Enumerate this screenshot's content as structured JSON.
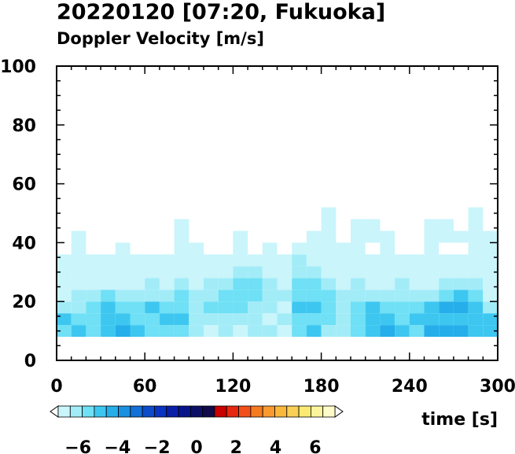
{
  "header": {
    "title": "20220120 [07:20, Fukuoka]",
    "subtitle": "Doppler Velocity [m/s]"
  },
  "chart_data": {
    "type": "heatmap",
    "title": "20220120 [07:20, Fukuoka]",
    "subtitle": "Doppler Velocity [m/s]",
    "xlabel": "time [s]",
    "ylabel": "",
    "xlim": [
      0,
      300
    ],
    "ylim": [
      0,
      100
    ],
    "x_ticks": [
      0,
      60,
      120,
      180,
      240,
      300
    ],
    "y_ticks": [
      0,
      20,
      40,
      60,
      80,
      100
    ],
    "grid": false,
    "data_floor_height": 8,
    "time_bins_s": [
      0,
      10,
      20,
      30,
      40,
      50,
      60,
      70,
      80,
      90,
      100,
      110,
      120,
      130,
      140,
      150,
      160,
      170,
      180,
      190,
      200,
      210,
      220,
      230,
      240,
      250,
      260,
      270,
      280,
      290
    ],
    "height_bins": [
      8,
      12,
      16,
      20,
      24,
      28,
      32,
      36,
      40,
      44,
      48
    ],
    "velocity_grid": [
      [
        -5.5,
        -5.0,
        -5.5,
        -5.0,
        -4.5,
        -5.0,
        -5.5,
        -5.5,
        -5.5,
        -6.0,
        -6.5,
        -6.0,
        -6.5,
        -6.0,
        -6.0,
        -6.5,
        -5.5,
        -5.0,
        -6.0,
        -6.0,
        -5.5,
        -5.0,
        -4.5,
        -5.0,
        -5.5,
        -4.5,
        -4.5,
        -4.5,
        -5.0,
        -5.0
      ],
      [
        -5.0,
        -5.5,
        -5.5,
        -5.0,
        -5.0,
        -5.5,
        -5.5,
        -5.0,
        -5.0,
        -6.0,
        -6.0,
        -6.0,
        -6.0,
        -6.0,
        -6.5,
        -6.0,
        -5.5,
        -5.5,
        -5.5,
        -6.0,
        -5.5,
        -5.0,
        -5.0,
        -5.5,
        -5.0,
        -5.0,
        -5.0,
        -5.0,
        -5.0,
        -5.0
      ],
      [
        -6.0,
        -6.0,
        -5.5,
        -5.0,
        -5.5,
        -5.5,
        -5.0,
        -5.5,
        -5.5,
        -6.0,
        -5.5,
        -5.5,
        -5.5,
        -6.0,
        -6.0,
        -6.5,
        -5.0,
        -5.0,
        -5.5,
        -6.0,
        -5.5,
        -5.0,
        -5.5,
        -5.5,
        -5.5,
        -5.0,
        -4.5,
        -4.5,
        -5.0,
        -6.0
      ],
      [
        -6.5,
        -6.0,
        -6.0,
        -5.5,
        -6.0,
        -6.0,
        -6.0,
        -6.0,
        -5.5,
        -6.0,
        -6.0,
        -5.5,
        -5.5,
        -5.5,
        -6.0,
        -6.0,
        -5.5,
        -5.5,
        -5.5,
        -6.0,
        -6.0,
        -6.0,
        -6.0,
        -6.0,
        -6.0,
        -6.0,
        -5.5,
        -5.0,
        -5.5,
        -6.5
      ],
      [
        -6.5,
        -6.5,
        -6.5,
        -6.5,
        -6.5,
        -6.5,
        -6.0,
        -6.5,
        -6.0,
        -6.5,
        -6.0,
        -6.0,
        -5.5,
        -5.5,
        -6.0,
        -6.5,
        -5.5,
        -5.5,
        -6.0,
        -6.5,
        -6.0,
        -6.5,
        -6.5,
        -6.0,
        -6.5,
        -6.5,
        -6.0,
        -6.0,
        -6.0,
        -6.5
      ],
      [
        -7.0,
        -6.5,
        -7.0,
        -6.5,
        -7.0,
        -7.0,
        -6.5,
        -6.5,
        -6.5,
        -6.5,
        -6.5,
        -6.5,
        -6.0,
        -6.0,
        -6.5,
        -6.5,
        -6.0,
        -6.0,
        -6.5,
        -6.5,
        -7.0,
        -6.5,
        -6.5,
        -6.5,
        -6.5,
        -7.0,
        -6.5,
        -6.5,
        -6.5,
        -7.0
      ],
      [
        -7.0,
        -7.0,
        -7.0,
        -7.0,
        -7.0,
        -7.0,
        -7.0,
        -7.0,
        -6.5,
        -6.5,
        -6.5,
        -7.0,
        -6.5,
        -7.0,
        -6.5,
        -6.5,
        -6.0,
        -6.5,
        -6.5,
        -7.0,
        -7.0,
        -7.0,
        -7.0,
        -7.0,
        -7.0,
        -7.0,
        -7.0,
        -7.0,
        -7.0,
        -7.0
      ],
      [
        null,
        -7.0,
        null,
        null,
        -7.0,
        null,
        null,
        null,
        -7.0,
        -7.0,
        null,
        null,
        -7.0,
        null,
        -7.0,
        null,
        -7.0,
        -7.0,
        -7.0,
        -7.0,
        -7.0,
        null,
        -7.0,
        null,
        null,
        -7.0,
        null,
        null,
        -7.0,
        -7.0
      ],
      [
        null,
        -7.0,
        null,
        null,
        null,
        null,
        null,
        null,
        -7.0,
        null,
        null,
        null,
        -7.0,
        null,
        null,
        null,
        null,
        -7.0,
        -7.0,
        null,
        -7.0,
        -7.0,
        -7.0,
        null,
        null,
        -7.0,
        -7.0,
        -7.0,
        -7.0,
        -7.0
      ],
      [
        null,
        null,
        null,
        null,
        null,
        null,
        null,
        null,
        -7.0,
        null,
        null,
        null,
        null,
        null,
        null,
        null,
        null,
        null,
        -7.0,
        null,
        -7.0,
        -7.0,
        null,
        null,
        null,
        -7.0,
        -7.0,
        null,
        -7.0,
        null
      ],
      [
        null,
        null,
        null,
        null,
        null,
        null,
        null,
        null,
        null,
        null,
        null,
        null,
        null,
        null,
        null,
        null,
        null,
        null,
        -7.0,
        null,
        null,
        null,
        null,
        null,
        null,
        null,
        null,
        null,
        -7.0,
        null
      ]
    ],
    "colorbar": {
      "min": -7,
      "max": 7,
      "tick_labels": [
        "−6",
        "−4",
        "−2",
        "0",
        "2",
        "4",
        "6"
      ],
      "tick_values": [
        -6,
        -4,
        -2,
        0,
        2,
        4,
        6
      ],
      "colors": [
        "#ffffff",
        "#c9f5fb",
        "#a2ecf8",
        "#6fe0f5",
        "#3dc7f0",
        "#25aeea",
        "#1a90e0",
        "#1370d6",
        "#0c4ccb",
        "#0a33c0",
        "#0a1fa8",
        "#08148a",
        "#0b0f66",
        "#10094a",
        "#c80000",
        "#e62810",
        "#f2501a",
        "#f57a20",
        "#f89a30",
        "#f9b83c",
        "#f9cf56",
        "#faea73",
        "#fbf49d",
        "#fdfbc8",
        "#ffffff"
      ]
    }
  }
}
